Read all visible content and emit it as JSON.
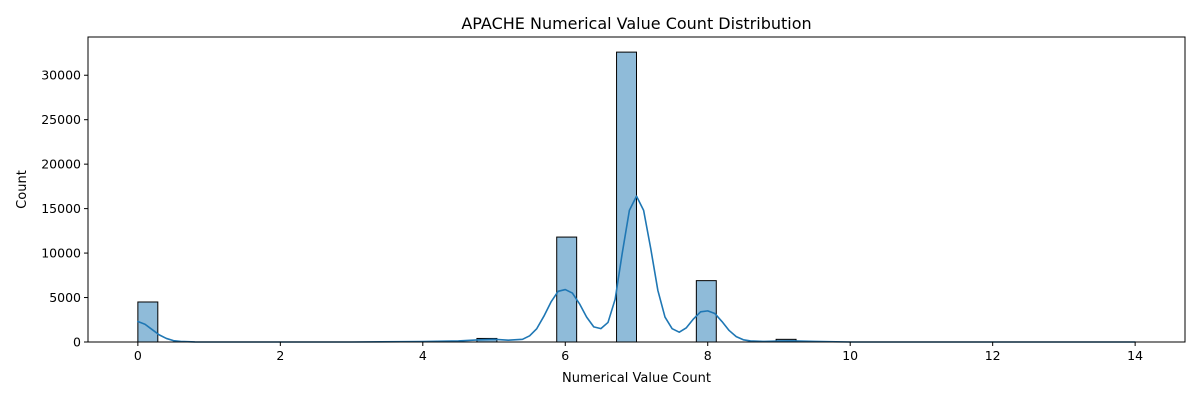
{
  "chart_data": {
    "type": "bar",
    "title": "APACHE Numerical Value Count Distribution",
    "xlabel": "Numerical Value Count",
    "ylabel": "Count",
    "xlim": [
      -0.7,
      14.7
    ],
    "ylim": [
      0,
      34300
    ],
    "xticks": [
      0,
      2,
      4,
      6,
      8,
      10,
      12,
      14
    ],
    "yticks": [
      0,
      5000,
      10000,
      15000,
      20000,
      25000,
      30000
    ],
    "grid": false,
    "legend": "none",
    "bin_width": 0.28,
    "bars": [
      {
        "x0": 0.0,
        "value": 4500
      },
      {
        "x0": 4.76,
        "value": 400
      },
      {
        "x0": 5.88,
        "value": 11800
      },
      {
        "x0": 6.72,
        "value": 32600
      },
      {
        "x0": 7.84,
        "value": 6900
      },
      {
        "x0": 8.96,
        "value": 300
      }
    ],
    "kde": {
      "x": [
        0.0,
        0.1,
        0.2,
        0.3,
        0.4,
        0.5,
        0.6,
        0.8,
        1.0,
        2.0,
        3.0,
        4.0,
        4.5,
        4.8,
        5.0,
        5.2,
        5.4,
        5.5,
        5.6,
        5.7,
        5.8,
        5.9,
        6.0,
        6.1,
        6.2,
        6.3,
        6.4,
        6.5,
        6.6,
        6.7,
        6.8,
        6.9,
        7.0,
        7.1,
        7.2,
        7.3,
        7.4,
        7.5,
        7.6,
        7.7,
        7.8,
        7.9,
        8.0,
        8.1,
        8.2,
        8.3,
        8.4,
        8.5,
        8.6,
        8.8,
        9.0,
        9.2,
        9.5,
        10.0,
        11.0,
        12.0,
        13.0,
        14.0
      ],
      "y": [
        2300,
        2000,
        1400,
        800,
        400,
        150,
        60,
        10,
        0,
        0,
        0,
        50,
        120,
        250,
        300,
        200,
        300,
        700,
        1500,
        2900,
        4500,
        5700,
        5900,
        5500,
        4300,
        2800,
        1700,
        1500,
        2200,
        4800,
        10000,
        14800,
        16400,
        14800,
        10500,
        5800,
        2800,
        1500,
        1100,
        1600,
        2600,
        3400,
        3500,
        3200,
        2300,
        1300,
        600,
        250,
        120,
        60,
        100,
        120,
        60,
        0,
        0,
        0,
        0,
        0
      ]
    }
  },
  "colors": {
    "bar_fill": "#8fbbd9",
    "bar_edge": "#000000",
    "kde_line": "#1f77b4",
    "axis": "#000000"
  }
}
